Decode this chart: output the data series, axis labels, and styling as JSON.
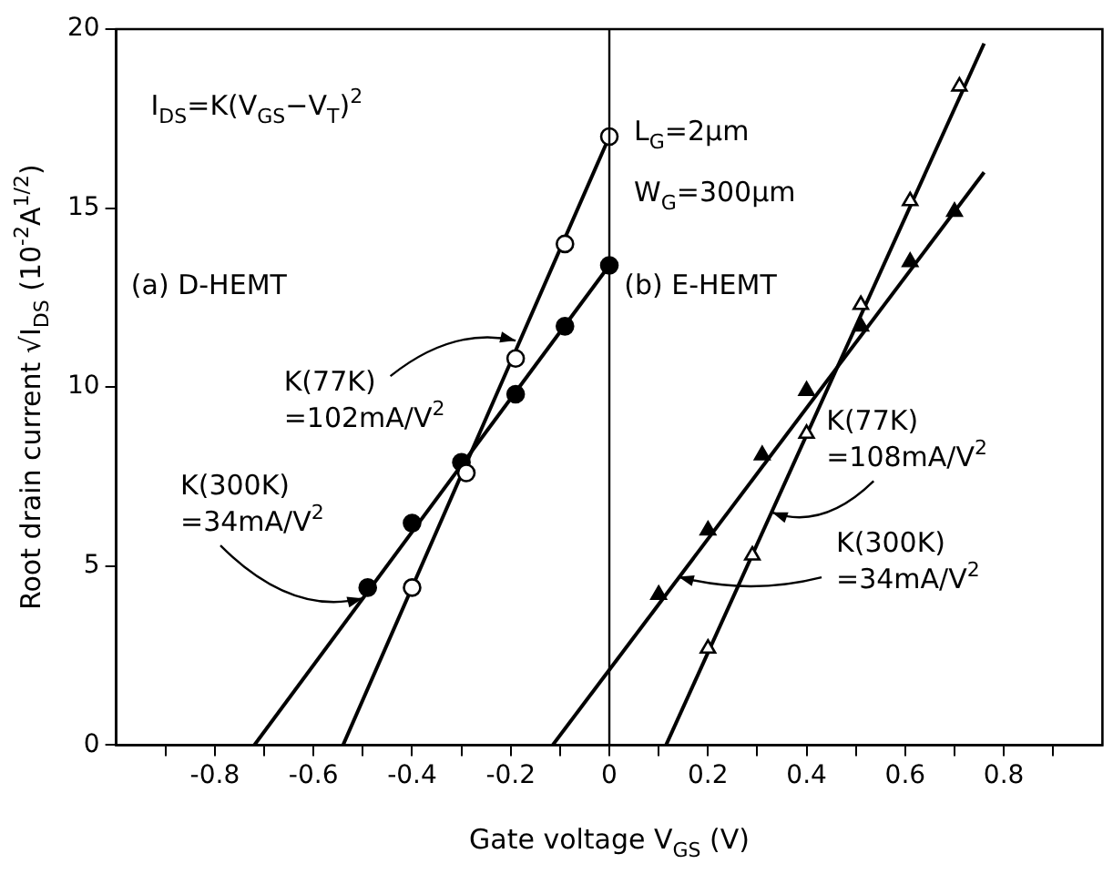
{
  "chart_data": {
    "type": "scatter",
    "xlabel": "Gate voltage V$_{GS}$ (V)",
    "ylabel": "Root drain current √I$_{DS}$ (10$^{-2}$A$^{1/2}$)",
    "xlim": [
      -1,
      1
    ],
    "ylim": [
      0,
      20
    ],
    "xticks": [
      {
        "value": -0.9,
        "label": null
      },
      -0.8,
      {
        "value": -0.7,
        "label": null
      },
      -0.6,
      {
        "value": -0.5,
        "label": null
      },
      -0.4,
      {
        "value": -0.3,
        "label": null
      },
      -0.2,
      {
        "value": -0.1,
        "label": null
      },
      0,
      {
        "value": 0.1,
        "label": null
      },
      0.2,
      {
        "value": 0.3,
        "label": null
      },
      0.4,
      {
        "value": 0.5,
        "label": null
      },
      0.6,
      {
        "value": 0.7,
        "label": null
      },
      0.8,
      {
        "value": 0.9,
        "label": null
      }
    ],
    "yticks": [
      0,
      5,
      10,
      15,
      20
    ],
    "series": [
      {
        "type": "scatter",
        "marker": "circle",
        "color": "#ffffff",
        "x": [
          -0.4,
          -0.29,
          -0.19,
          -0.09,
          0
        ],
        "values": [
          4.4,
          7.6,
          10.8,
          14.0,
          17.0
        ]
      },
      {
        "type": "scatter",
        "marker": "circle",
        "color": "#000000",
        "x": [
          -0.49,
          -0.4,
          -0.3,
          -0.19,
          -0.09,
          0
        ],
        "values": [
          4.4,
          6.2,
          7.9,
          9.8,
          11.7,
          13.4
        ]
      },
      {
        "type": "scatter",
        "marker": "triangle",
        "color": "#ffffff",
        "x": [
          0.2,
          0.29,
          0.4,
          0.51,
          0.61,
          0.71
        ],
        "values": [
          2.7,
          5.3,
          8.7,
          12.3,
          15.2,
          18.4
        ]
      },
      {
        "type": "scatter",
        "marker": "triangle",
        "color": "#000000",
        "x": [
          0.1,
          0.2,
          0.31,
          0.4,
          0.51,
          0.61,
          0.7
        ],
        "values": [
          4.2,
          6.0,
          8.1,
          9.9,
          11.7,
          13.5,
          14.9
        ]
      },
      {
        "type": "line",
        "marker": "none",
        "color": "#000000",
        "x": [
          -0.54,
          0
        ],
        "values": [
          0,
          17.0
        ]
      },
      {
        "type": "line",
        "marker": "none",
        "color": "#000000",
        "x": [
          -0.72,
          0
        ],
        "values": [
          0,
          13.4
        ]
      },
      {
        "type": "line",
        "marker": "none",
        "color": "#000000",
        "x": [
          0.115,
          0.76
        ],
        "values": [
          0,
          19.6
        ]
      },
      {
        "type": "line",
        "marker": "none",
        "color": "#000000",
        "x": [
          -0.115,
          0.76
        ],
        "values": [
          0,
          16.0
        ]
      }
    ],
    "ref_lines": [
      {
        "axis": "x",
        "value": 0,
        "color": "#000000"
      }
    ],
    "annotations": [
      "I$_{DS}$=K(V$_{GS}$−V$_{T}$)$^{2}$",
      "L$_{G}$=2μm",
      "W$_{G}$=300μm",
      "(a) D-HEMT",
      "(b) E-HEMT",
      {
        "text": "K(77K)\n=102mA/V$^{2}$",
        "x": -0.19,
        "y": 11.3
      },
      {
        "text": "K(300K)\n=34mA/V$^{2}$",
        "x": -0.5,
        "y": 4.1
      },
      {
        "text": "K(77K)\n=108mA/V$^{2}$",
        "x": 0.33,
        "y": 6.5
      },
      {
        "text": "K(300K)\n=34mA/V$^{2}$",
        "x": 0.14,
        "y": 4.7
      }
    ]
  }
}
